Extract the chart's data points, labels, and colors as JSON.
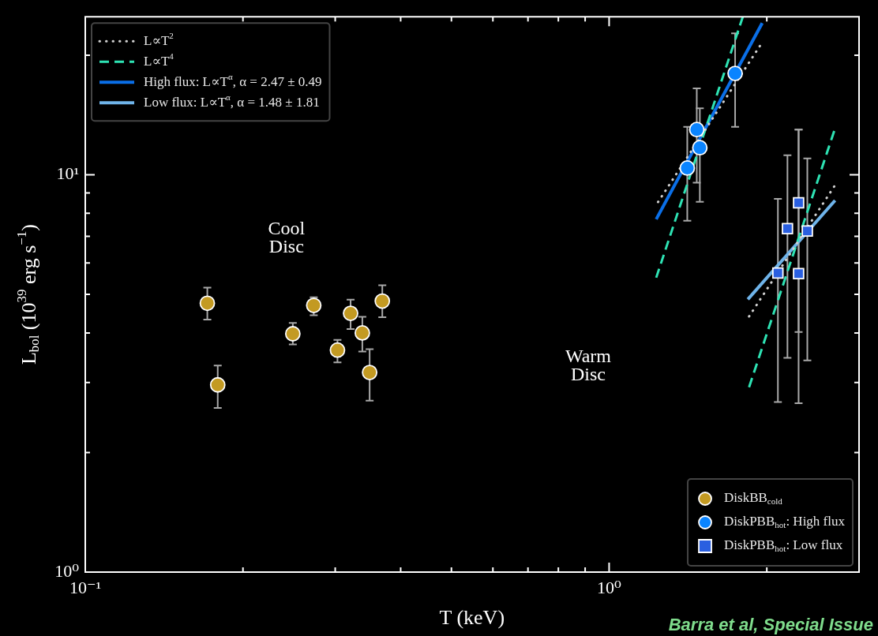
{
  "chart_data": {
    "type": "scatter",
    "xlabel": "T (keV)",
    "ylabel": "L$_{bol}$ (10$^{39}$ erg s$^{−1}$)",
    "log": "xy",
    "xlim": [
      0.1,
      3.0
    ],
    "ylim": [
      1,
      25
    ],
    "xticks": [
      {
        "value": 0.1,
        "label": "10⁻¹"
      },
      {
        "value": 0.2,
        "label": null
      },
      {
        "value": 0.3,
        "label": null
      },
      {
        "value": 0.4,
        "label": null
      },
      {
        "value": 0.5,
        "label": null
      },
      {
        "value": 0.6,
        "label": null
      },
      {
        "value": 0.7,
        "label": null
      },
      {
        "value": 0.8,
        "label": null
      },
      {
        "value": 0.9,
        "label": null
      },
      {
        "value": 1,
        "label": "10⁰"
      },
      {
        "value": 2,
        "label": null
      },
      {
        "value": 3,
        "label": null
      }
    ],
    "yticks": [
      {
        "value": 1,
        "label": "10⁰"
      },
      {
        "value": 2,
        "label": null
      },
      {
        "value": 3,
        "label": null
      },
      {
        "value": 4,
        "label": null
      },
      {
        "value": 5,
        "label": null
      },
      {
        "value": 6,
        "label": null
      },
      {
        "value": 7,
        "label": null
      },
      {
        "value": 8,
        "label": null
      },
      {
        "value": 9,
        "label": null
      },
      {
        "value": 10,
        "label": "10¹"
      },
      {
        "value": 20,
        "label": null
      }
    ],
    "grid": false,
    "legend": "top left",
    "series": [
      {
        "name": "DiskBB$_{cold}$",
        "marker": "circle",
        "color": "#c39a22",
        "x": [
          0.171,
          0.179,
          0.249,
          0.273,
          0.303,
          0.321,
          0.338,
          0.349,
          0.369
        ],
        "values": [
          4.75,
          2.96,
          3.98,
          4.69,
          3.62,
          4.48,
          4.0,
          3.18,
          4.81
        ],
        "errors": [
          [
            4.32,
            5.2
          ],
          [
            2.59,
            3.31
          ],
          [
            3.74,
            4.24
          ],
          [
            4.43,
            4.92
          ],
          [
            3.37,
            3.84
          ],
          [
            4.09,
            4.85
          ],
          [
            3.59,
            4.39
          ],
          [
            2.7,
            3.64
          ],
          [
            4.38,
            5.27
          ]
        ]
      },
      {
        "name": "DiskPBB$_{hot}$: High flux",
        "marker": "circle",
        "color": "#0a84ff",
        "x": [
          1.41,
          1.47,
          1.49,
          1.74
        ],
        "values": [
          10.4,
          13.0,
          11.7,
          18.0
        ],
        "errors": [
          [
            7.66,
            13.2
          ],
          [
            9.56,
            16.5
          ],
          [
            8.55,
            14.7
          ],
          [
            13.2,
            22.7
          ]
        ]
      },
      {
        "name": "DiskPBB$_{hot}$: Low flux",
        "marker": "square",
        "color": "#2a5fe0",
        "x": [
          2.1,
          2.19,
          2.3,
          2.3,
          2.39
        ],
        "values": [
          5.66,
          7.32,
          8.5,
          5.64,
          7.22
        ],
        "errors": [
          [
            2.68,
            8.7
          ],
          [
            3.46,
            11.2
          ],
          [
            4.02,
            13.0
          ],
          [
            2.66,
            13.0
          ],
          [
            3.41,
            11.0
          ]
        ]
      },
      {
        "name": "L∝T$^{2}$",
        "type": "line",
        "line_style": "dotted",
        "color": "#d0d0d0",
        "x": [
          1.24,
          1.94
        ],
        "values": [
          8.54,
          21.1
        ]
      },
      {
        "type": "line",
        "line_style": "dotted",
        "color": "#d0d0d0",
        "x": [
          1.85,
          2.69
        ],
        "values": [
          4.4,
          9.35
        ]
      },
      {
        "name": "L∝T$^{4}$",
        "type": "line",
        "line_style": "dashed",
        "color": "#2ee3b4",
        "x": [
          1.23,
          1.8
        ],
        "values": [
          5.51,
          25
        ]
      },
      {
        "type": "line",
        "line_style": "dashed",
        "color": "#2ee3b4",
        "x": [
          1.85,
          2.69
        ],
        "values": [
          2.92,
          12.9
        ]
      },
      {
        "name": "High flux: L∝T$^{α}$, α = 2.47 ± 0.49",
        "type": "line",
        "line_style": "solid",
        "color": "#0a6fe8",
        "x": [
          1.23,
          1.96
        ],
        "values": [
          7.73,
          24.1
        ]
      },
      {
        "name": "Low flux: L∝T$^{α}$, α = 1.48 ± 1.81",
        "type": "line",
        "line_style": "solid",
        "color": "#6fb4ea",
        "x": [
          1.84,
          2.7
        ],
        "values": [
          4.86,
          8.62
        ]
      }
    ],
    "annotations": [
      "Cool\nDisc",
      "Warm\nDisc",
      "Barra et al, Special Issue"
    ]
  }
}
